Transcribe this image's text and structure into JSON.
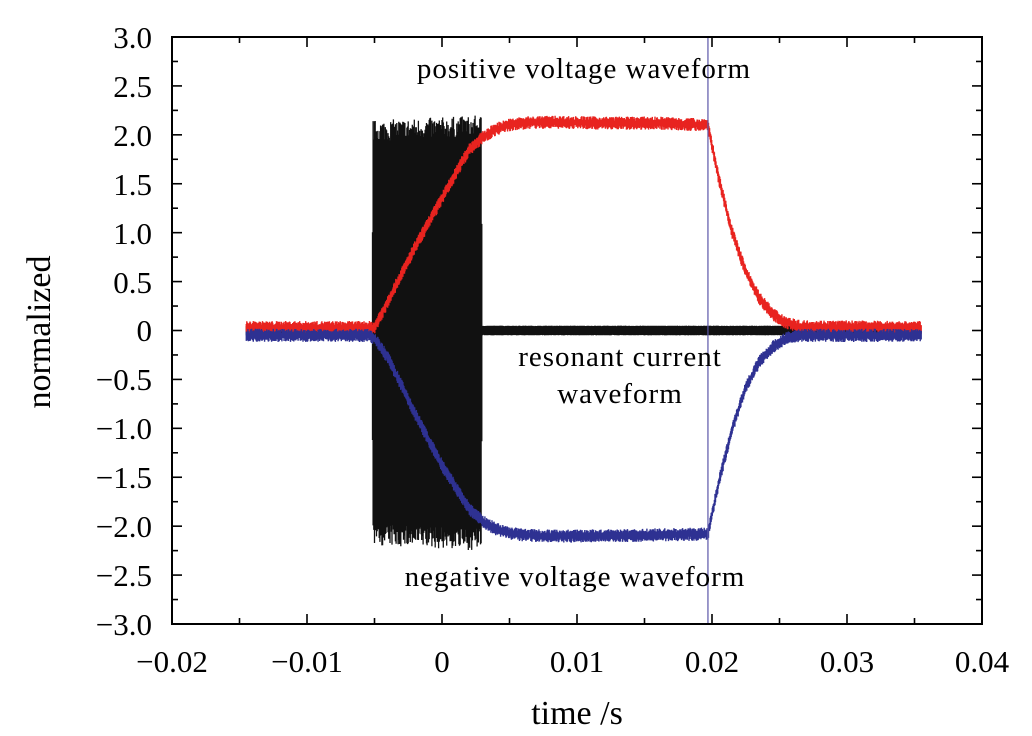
{
  "chart_data": {
    "type": "line",
    "title": "",
    "xlabel": "time /s",
    "ylabel": "normalized",
    "xlim": [
      -0.02,
      0.04
    ],
    "ylim": [
      -3.0,
      3.0
    ],
    "grid": false,
    "x_ticks": [
      -0.02,
      -0.01,
      0,
      0.01,
      0.02,
      0.03,
      0.04
    ],
    "x_tick_labels": [
      "−0.02",
      "−0.01",
      "0",
      "0.01",
      "0.02",
      "0.03",
      "0.04"
    ],
    "y_ticks": [
      3.0,
      2.5,
      2.0,
      1.5,
      1.0,
      0.5,
      0,
      -0.5,
      -1.0,
      -1.5,
      -2.0,
      -2.5,
      -3.0
    ],
    "y_tick_labels": [
      "3.0",
      "2.5",
      "2.0",
      "1.5",
      "1.0",
      "0.5",
      "0",
      "−0.5",
      "−1.0",
      "−1.5",
      "−2.0",
      "−2.5",
      "−3.0"
    ],
    "series": [
      {
        "color": "#e8231f",
        "x": [
          -0.0145,
          -0.0055,
          -0.005,
          -0.004,
          -0.002,
          0.0,
          0.002,
          0.003,
          0.004,
          0.005,
          0.006,
          0.008,
          0.012,
          0.016,
          0.0197,
          0.0205,
          0.0215,
          0.0225,
          0.0235,
          0.0245,
          0.0255,
          0.0265,
          0.0355
        ],
        "y": [
          0.03,
          0.03,
          0.03,
          0.3,
          0.85,
          1.35,
          1.85,
          1.97,
          2.06,
          2.1,
          2.12,
          2.13,
          2.12,
          2.12,
          2.1,
          1.55,
          1.0,
          0.6,
          0.33,
          0.17,
          0.08,
          0.04,
          0.03
        ],
        "noise": 0.045
      },
      {
        "color": "#2e3192",
        "x": [
          -0.0145,
          -0.0055,
          -0.005,
          -0.004,
          -0.002,
          0.0,
          0.002,
          0.003,
          0.004,
          0.005,
          0.006,
          0.008,
          0.012,
          0.016,
          0.0197,
          0.0205,
          0.0215,
          0.0225,
          0.0235,
          0.0245,
          0.0255,
          0.0265,
          0.0355
        ],
        "y": [
          -0.05,
          -0.05,
          -0.08,
          -0.28,
          -0.85,
          -1.38,
          -1.82,
          -1.95,
          -2.03,
          -2.07,
          -2.09,
          -2.1,
          -2.1,
          -2.09,
          -2.08,
          -1.55,
          -1.0,
          -0.58,
          -0.32,
          -0.17,
          -0.08,
          -0.05,
          -0.05
        ],
        "noise": 0.045
      },
      {
        "color": "#111111",
        "x": [
          -0.0145,
          -0.0052,
          -0.0051,
          0.0029,
          0.003,
          0.0355
        ],
        "y_upper": [
          0.05,
          0.05,
          2.15,
          2.2,
          0.05,
          0.05
        ],
        "y_lower": [
          -0.05,
          -0.05,
          -2.2,
          -2.25,
          -0.05,
          -0.05
        ]
      }
    ],
    "annotations": [
      "positive voltage waveform",
      "resonant current",
      "waveform",
      "negative voltage waveform"
    ]
  }
}
